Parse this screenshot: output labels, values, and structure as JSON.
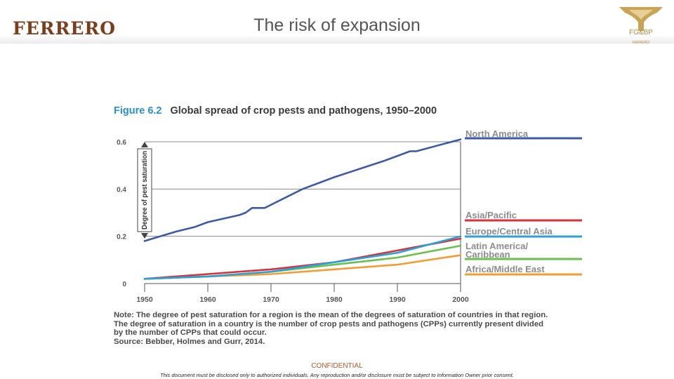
{
  "header": {
    "brand": "FERRERO",
    "title": "The risk of expansion",
    "corner_logo_label": "FG&BP",
    "corner_logo_sub": "FERRERO"
  },
  "figure": {
    "number": "Figure 6.2",
    "title": "Global spread of crop pests and pathogens, 1950–2000"
  },
  "chart_data": {
    "type": "line",
    "title": "Global spread of crop pests and pathogens, 1950–2000",
    "xlabel": "",
    "ylabel": "Degree of pest saturation",
    "xlim": [
      1950,
      2000
    ],
    "ylim": [
      0,
      0.6
    ],
    "x_ticks": [
      1950,
      1960,
      1970,
      1980,
      1990,
      2000
    ],
    "x_tick_labels": [
      "1950",
      "1960",
      "1970",
      "1980",
      "1990",
      "2000"
    ],
    "y_ticks": [
      0,
      0.2,
      0.4,
      0.6
    ],
    "y_tick_labels": [
      "0",
      "0.2",
      "0.4",
      "0.6"
    ],
    "grid": "horizontal",
    "legend_position": "right",
    "series": [
      {
        "name": "North America",
        "color": "#3d5aa8",
        "x": [
          1950,
          1955,
          1958,
          1960,
          1965,
          1966,
          1967,
          1969,
          1975,
          1977,
          1980,
          1988,
          1992,
          1993,
          2000
        ],
        "values": [
          0.18,
          0.22,
          0.24,
          0.26,
          0.29,
          0.3,
          0.32,
          0.32,
          0.4,
          0.42,
          0.45,
          0.52,
          0.56,
          0.56,
          0.61
        ]
      },
      {
        "name": "Asia/Pacific",
        "color": "#d6323a",
        "x": [
          1950,
          1960,
          1970,
          1980,
          1990,
          2000
        ],
        "values": [
          0.02,
          0.04,
          0.06,
          0.09,
          0.14,
          0.19
        ]
      },
      {
        "name": "Europe/Central Asia",
        "color": "#2aa2d8",
        "x": [
          1950,
          1960,
          1970,
          1980,
          1990,
          2000
        ],
        "values": [
          0.02,
          0.03,
          0.05,
          0.09,
          0.13,
          0.2
        ]
      },
      {
        "name": "Latin America/ Caribbean",
        "color": "#6bbf4c",
        "x": [
          1950,
          1960,
          1970,
          1980,
          1990,
          2000
        ],
        "values": [
          0.02,
          0.03,
          0.05,
          0.08,
          0.11,
          0.16
        ]
      },
      {
        "name": "Africa/Middle East",
        "color": "#f39c33",
        "x": [
          1950,
          1960,
          1970,
          1980,
          1990,
          2000
        ],
        "values": [
          0.02,
          0.03,
          0.04,
          0.06,
          0.08,
          0.12
        ]
      }
    ]
  },
  "note": {
    "line1": "Note: The degree of pest saturation for a region is the mean of the degrees of saturation of countries in that region.",
    "line2": "The degree of saturation in a country is the number of crop pests and pathogens (CPPs) currently present divided",
    "line3": "by the number of CPPs that could occur.",
    "line4": "Source: Bebber, Holmes and Gurr, 2014."
  },
  "footer": {
    "confidential": "CONFIDENTIAL",
    "disclaimer": "This document must be disclosed only to authorized individuals. Any reproduction and/or disclosure must be subject to Information Owner prior consent."
  }
}
